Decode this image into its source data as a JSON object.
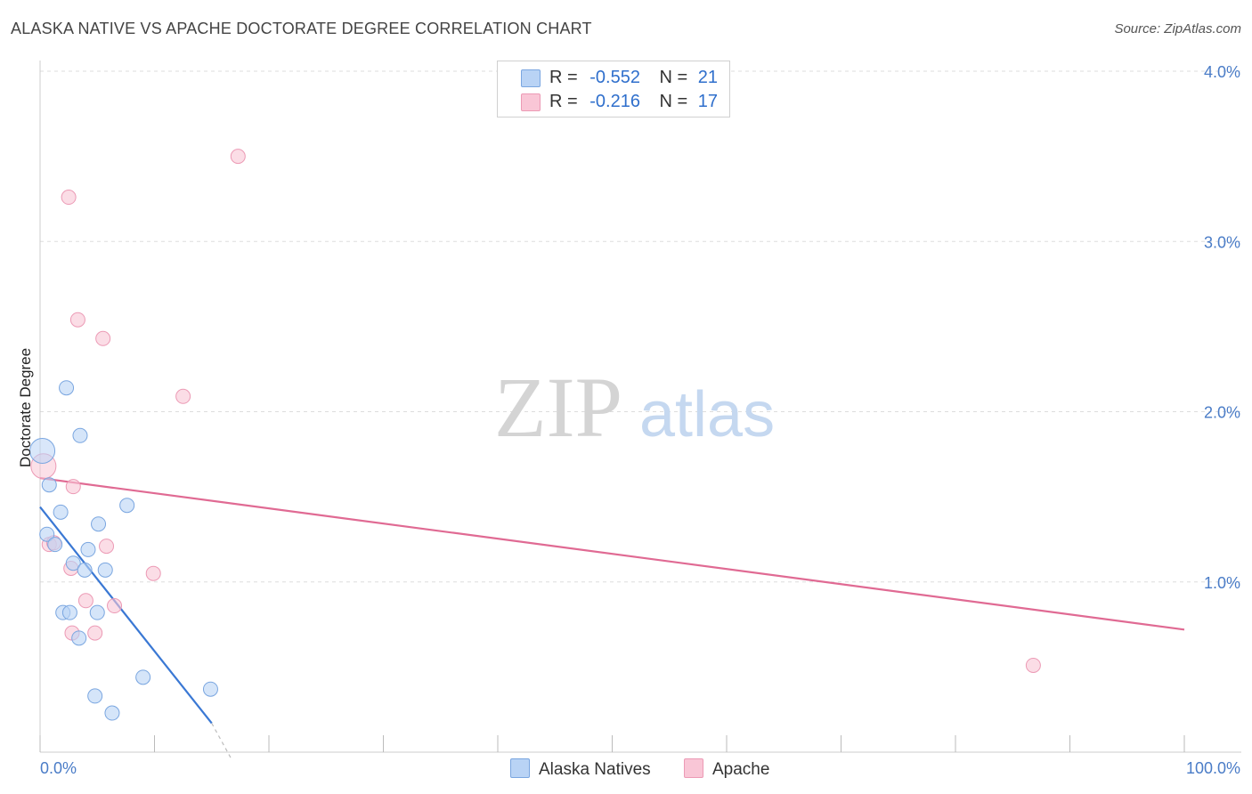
{
  "title": "ALASKA NATIVE VS APACHE DOCTORATE DEGREE CORRELATION CHART",
  "source": "Source: ZipAtlas.com",
  "watermark": {
    "zip": "ZIP",
    "atlas": "atlas"
  },
  "legend": {
    "rows": [
      {
        "r_label": "R =",
        "r_value": "-0.552",
        "n_label": "N =",
        "n_value": "21"
      },
      {
        "r_label": "R =",
        "r_value": "-0.216",
        "n_label": "N =",
        "n_value": "17"
      }
    ]
  },
  "colors": {
    "alaska_fill": "#b9d3f5",
    "alaska_stroke": "#7aa6e0",
    "alaska_line": "#3a78d4",
    "apache_fill": "#f9c6d6",
    "apache_stroke": "#ec9ab5",
    "apache_line": "#e06a93"
  },
  "chart_data": {
    "type": "scatter",
    "title": "ALASKA NATIVE VS APACHE DOCTORATE DEGREE CORRELATION CHART",
    "xlabel": "",
    "ylabel": "Doctorate Degree",
    "xlim": [
      0,
      100
    ],
    "ylim": [
      0,
      4.0
    ],
    "x_ticks": [
      "0.0%",
      "100.0%"
    ],
    "y_ticks": [
      "1.0%",
      "2.0%",
      "3.0%",
      "4.0%"
    ],
    "y_tick_values": [
      1.0,
      2.0,
      3.0,
      4.0
    ],
    "grid": true,
    "legend_position": "top-center",
    "series": [
      {
        "name": "Alaska Natives",
        "points": [
          [
            0.2,
            1.77
          ],
          [
            0.8,
            1.57
          ],
          [
            0.6,
            1.28
          ],
          [
            1.3,
            1.22
          ],
          [
            1.8,
            1.41
          ],
          [
            2.3,
            2.14
          ],
          [
            3.5,
            1.86
          ],
          [
            2.0,
            0.82
          ],
          [
            2.6,
            0.82
          ],
          [
            3.4,
            0.67
          ],
          [
            2.9,
            1.11
          ],
          [
            3.9,
            1.07
          ],
          [
            4.2,
            1.19
          ],
          [
            5.1,
            1.34
          ],
          [
            5.7,
            1.07
          ],
          [
            5.0,
            0.82
          ],
          [
            7.6,
            1.45
          ],
          [
            4.8,
            0.33
          ],
          [
            6.3,
            0.23
          ],
          [
            9.0,
            0.44
          ],
          [
            14.9,
            0.37
          ]
        ],
        "trend": {
          "x": [
            0.0,
            15.0
          ],
          "y": [
            1.44,
            0.17
          ]
        }
      },
      {
        "name": "Apache",
        "points": [
          [
            0.3,
            1.68
          ],
          [
            0.8,
            1.22
          ],
          [
            1.2,
            1.23
          ],
          [
            2.5,
            3.26
          ],
          [
            3.3,
            2.54
          ],
          [
            5.5,
            2.43
          ],
          [
            2.7,
            1.08
          ],
          [
            2.9,
            1.56
          ],
          [
            2.8,
            0.7
          ],
          [
            4.0,
            0.89
          ],
          [
            4.8,
            0.7
          ],
          [
            5.8,
            1.21
          ],
          [
            6.5,
            0.86
          ],
          [
            9.9,
            1.05
          ],
          [
            12.5,
            2.09
          ],
          [
            17.3,
            3.5
          ],
          [
            86.8,
            0.51
          ]
        ],
        "trend": {
          "x": [
            0.0,
            100.0
          ],
          "y": [
            1.61,
            0.72
          ]
        }
      }
    ]
  }
}
